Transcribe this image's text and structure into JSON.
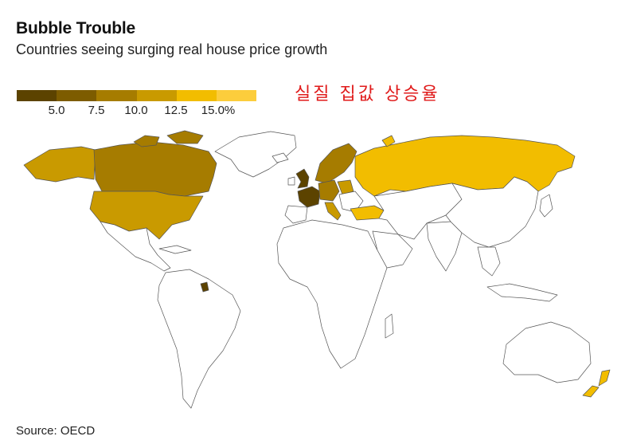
{
  "header": {
    "title": "Bubble Trouble",
    "subtitle": "Countries seeing surging real house price growth"
  },
  "annotation": "실질 집값 상승율",
  "legend": {
    "colors": [
      "#5c4300",
      "#7d5c00",
      "#a67c00",
      "#c99a00",
      "#f2bd00",
      "#fccd3c"
    ],
    "ticks": [
      "5.0",
      "7.5",
      "10.0",
      "12.5",
      "15.0%"
    ]
  },
  "footer": {
    "source": "Source: OECD"
  },
  "map_data": {
    "type": "choropleth",
    "metric": "real house price growth (%)",
    "nodata_color": "#ffffff",
    "regions": [
      {
        "id": "russia",
        "color": "#f2bd00"
      },
      {
        "id": "turkey",
        "color": "#f2bd00"
      },
      {
        "id": "new-zealand",
        "color": "#f2bd00"
      },
      {
        "id": "usa",
        "color": "#c99a00"
      },
      {
        "id": "alaska",
        "color": "#c99a00"
      },
      {
        "id": "canada",
        "color": "#a67c00"
      },
      {
        "id": "france",
        "color": "#5c4300"
      },
      {
        "id": "uk",
        "color": "#5c4300"
      },
      {
        "id": "germany",
        "color": "#a67c00"
      },
      {
        "id": "scandinavia",
        "color": "#a67c00"
      },
      {
        "id": "iberia",
        "color": "#ffffff"
      },
      {
        "id": "italy",
        "color": "#c99a00"
      },
      {
        "id": "poland",
        "color": "#c99a00"
      },
      {
        "id": "french-guiana",
        "color": "#5c4300"
      }
    ]
  }
}
